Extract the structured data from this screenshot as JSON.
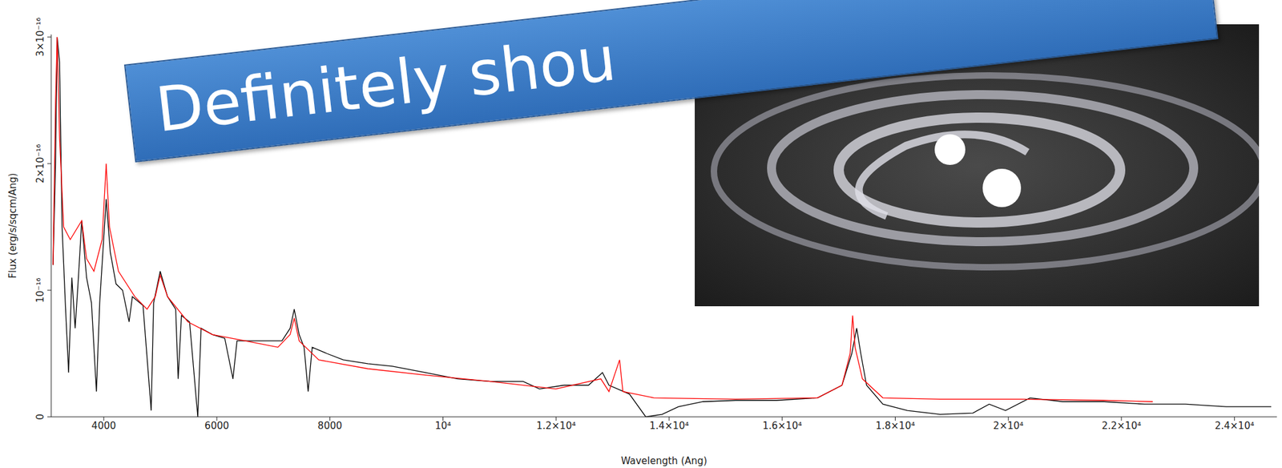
{
  "chart_data": {
    "type": "line",
    "title": "Definitely shou",
    "x_label": "Wavelength (Ang)",
    "y_label": "Flux (erg/s/sqcm/Ang)",
    "xlim": [
      3070,
      24750
    ],
    "xticks": [
      4000,
      6000,
      8000,
      {
        "value": 10000,
        "label": "10⁴"
      },
      {
        "value": 12000,
        "label": "1.2×10⁴"
      },
      {
        "value": 14000,
        "label": "1.4×10⁴"
      },
      {
        "value": 16000,
        "label": "1.6×10⁴"
      },
      {
        "value": 18000,
        "label": "1.8×10⁴"
      },
      {
        "value": 20000,
        "label": "2×10⁴"
      },
      {
        "value": 22000,
        "label": "2.2×10⁴"
      },
      {
        "value": 24000,
        "label": "2.4×10⁴"
      }
    ],
    "ylim": [
      0,
      3.02e-16
    ],
    "yticks": [
      0,
      {
        "value": 1e-16,
        "label": "10⁻¹⁶"
      },
      {
        "value": 2e-16,
        "label": "2×10⁻¹⁶"
      },
      {
        "value": 3e-16,
        "label": "3×10⁻¹⁶"
      }
    ],
    "grid": false,
    "series": [
      {
        "color": "#000000",
        "x": [
          3103,
          3147,
          3176,
          3219,
          3263,
          3320,
          3378,
          3436,
          3494,
          3552,
          3610,
          3696,
          3783,
          3870,
          3928,
          4043,
          4116,
          4217,
          4333,
          4448,
          4506,
          4694,
          4839,
          4882,
          4998,
          5128,
          5272,
          5316,
          5374,
          5518,
          5663,
          5721,
          5923,
          6140,
          6285,
          6357,
          6646,
          6935,
          7152,
          7297,
          7369,
          7456,
          7543,
          7615,
          7687,
          7948,
          8237,
          8671,
          9105,
          9683,
          10261,
          10840,
          11418,
          11707,
          12141,
          12575,
          12821,
          12936,
          13298,
          13587,
          13876,
          14165,
          14599,
          15177,
          15900,
          16624,
          17058,
          17231,
          17318,
          17390,
          17492,
          17781,
          18215,
          18793,
          19372,
          19661,
          19950,
          20384,
          20963,
          21686,
          22409,
          23132,
          23855,
          24650
        ],
        "values": [
          1.2e-16,
          2e-16,
          3e-16,
          2.8e-16,
          1.5e-16,
          9e-17,
          3.5e-17,
          1.1e-16,
          7e-17,
          1.1e-16,
          1.55e-16,
          1.1e-16,
          9e-17,
          2e-17,
          9e-17,
          1.72e-16,
          1.3e-16,
          1.05e-16,
          1e-16,
          7.5e-17,
          9.5e-17,
          8.8e-17,
          5e-18,
          9e-17,
          1.15e-16,
          9.5e-17,
          8.5e-17,
          3e-17,
          8e-17,
          7.5e-17,
          0,
          7e-17,
          6.5e-17,
          6.2e-17,
          3e-17,
          6e-17,
          6e-17,
          6e-17,
          6e-17,
          7e-17,
          8.5e-17,
          6.5e-17,
          5.5e-17,
          2e-17,
          5.5e-17,
          5e-17,
          4.5e-17,
          4.2e-17,
          4e-17,
          3.5e-17,
          3e-17,
          2.8e-17,
          2.8e-17,
          2.2e-17,
          2.5e-17,
          2.5e-17,
          3.5e-17,
          2.5e-17,
          1.8e-17,
          0,
          2e-18,
          8e-18,
          1.2e-17,
          1.3e-17,
          1.3e-17,
          1.5e-17,
          2.5e-17,
          5e-17,
          7e-17,
          5e-17,
          2.5e-17,
          1e-17,
          5e-18,
          2e-18,
          3e-18,
          1e-17,
          5e-18,
          1.5e-17,
          1.2e-17,
          1.2e-17,
          1e-17,
          1e-17,
          8e-18,
          8e-18
        ]
      },
      {
        "color": "#ff0000",
        "x": [
          3103,
          3147,
          3176,
          3219,
          3291,
          3407,
          3610,
          3696,
          3826,
          3971,
          4043,
          4101,
          4260,
          4549,
          4766,
          4911,
          4998,
          5128,
          5489,
          5923,
          6502,
          7080,
          7297,
          7369,
          7456,
          7803,
          8671,
          9683,
          10840,
          11997,
          12792,
          12936,
          13124,
          13182,
          13732,
          15177,
          16624,
          17058,
          17202,
          17246,
          17289,
          17419,
          17781,
          18793,
          20240,
          21686,
          22554
        ],
        "values": [
          1.2e-16,
          2.5e-16,
          3e-16,
          2.2e-16,
          1.5e-16,
          1.4e-16,
          1.55e-16,
          1.25e-16,
          1.15e-16,
          1.4e-16,
          2e-16,
          1.5e-16,
          1.15e-16,
          9.5e-17,
          8.5e-17,
          9.5e-17,
          1.12e-16,
          9.5e-17,
          7.5e-17,
          6.5e-17,
          6e-17,
          5.5e-17,
          6.5e-17,
          7.8e-17,
          6e-17,
          4.5e-17,
          3.8e-17,
          3.3e-17,
          2.8e-17,
          2.2e-17,
          3e-17,
          2e-17,
          4.5e-17,
          2e-17,
          1.5e-17,
          1.4e-17,
          1.5e-17,
          2.5e-17,
          5e-17,
          8e-17,
          5.5e-17,
          3e-17,
          1.5e-17,
          1.4e-17,
          1.4e-17,
          1.3e-17,
          1.2e-17
        ]
      }
    ]
  }
}
